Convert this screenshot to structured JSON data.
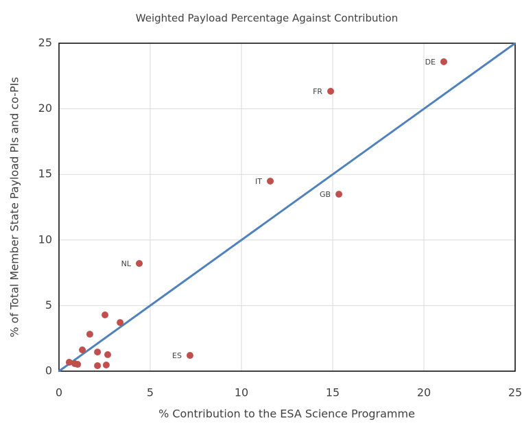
{
  "chart_data": {
    "type": "scatter",
    "title": "Weighted Payload Percentage Against Contribution",
    "x_label": "% Contribution to the ESA Science Programme",
    "y_label": "% of Total Member State Payload PIs and co-PIs",
    "series": [
      {
        "name": "Member States",
        "color": "#c0504d",
        "x": [
          21.09,
          14.89,
          11.58,
          15.34,
          4.4,
          7.18,
          2.52,
          3.35,
          1.69,
          1.28,
          2.11,
          2.67,
          0.56,
          0.86,
          1.02,
          2.11,
          2.59
        ],
        "values": [
          23.59,
          21.34,
          14.49,
          13.49,
          8.21,
          1.2,
          4.29,
          3.71,
          2.82,
          1.62,
          1.46,
          1.26,
          0.68,
          0.58,
          0.52,
          0.42,
          0.47
        ],
        "labels": [
          "DE",
          "FR",
          "IT",
          "GB",
          "NL",
          "ES",
          null,
          null,
          null,
          null,
          null,
          null,
          null,
          null,
          null,
          null,
          null
        ]
      }
    ],
    "reference_line": {
      "color": "#4f81bd",
      "x": [
        0,
        25
      ],
      "values": [
        0,
        25
      ]
    },
    "xlim": [
      0,
      25
    ],
    "xticks": [
      0,
      5,
      10,
      15,
      20,
      25
    ],
    "ylim": [
      0,
      25
    ],
    "yticks": [
      0,
      5,
      10,
      15,
      20,
      25
    ],
    "grid": true
  }
}
